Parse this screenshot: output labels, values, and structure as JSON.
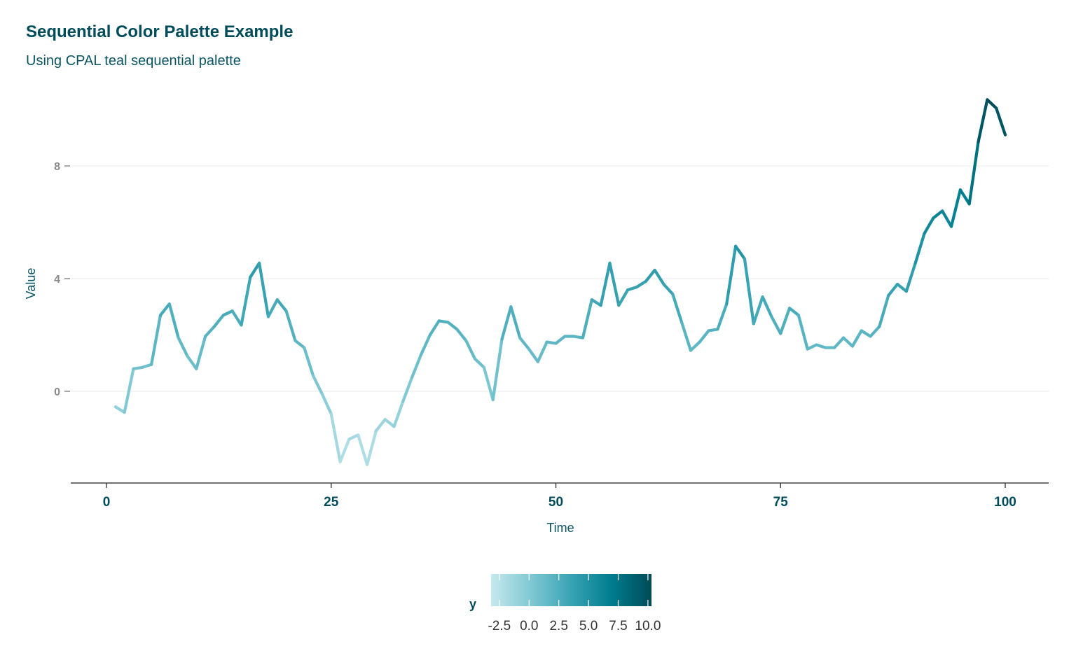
{
  "chart_data": {
    "type": "line",
    "title": "Sequential Color Palette Example",
    "subtitle": "Using CPAL teal sequential palette",
    "xlabel": "Time",
    "ylabel": "Value",
    "xlim": [
      0,
      100
    ],
    "ylim": [
      -3.3,
      11.0
    ],
    "xticks": [
      0,
      25,
      50,
      75,
      100
    ],
    "xtick_labels": [
      "0",
      "25",
      "50",
      "75",
      "100"
    ],
    "yticks": [
      0,
      4,
      8
    ],
    "ytick_labels": [
      "0",
      "4",
      "8"
    ],
    "grid": "horizontal",
    "color_scale": {
      "variable": "y",
      "title": "y",
      "min": -3.2,
      "max": 10.3,
      "breaks": [
        -2.5,
        0.0,
        2.5,
        5.0,
        7.5,
        10.0
      ],
      "break_labels": [
        "-2.5",
        "0.0",
        "2.5",
        "5.0",
        "7.5",
        "10.0"
      ],
      "colors": [
        "#C6E8EE",
        "#7FC8D3",
        "#39A3B3",
        "#007D8F",
        "#004A56"
      ],
      "legend_position": "bottom"
    },
    "x": [
      1,
      2,
      3,
      4,
      5,
      6,
      7,
      8,
      9,
      10,
      11,
      12,
      13,
      14,
      15,
      16,
      17,
      18,
      19,
      20,
      21,
      22,
      23,
      24,
      25,
      26,
      27,
      28,
      29,
      30,
      31,
      32,
      33,
      34,
      35,
      36,
      37,
      38,
      39,
      40,
      41,
      42,
      43,
      44,
      45,
      46,
      47,
      48,
      49,
      50,
      51,
      52,
      53,
      54,
      55,
      56,
      57,
      58,
      59,
      60,
      61,
      62,
      63,
      64,
      65,
      66,
      67,
      68,
      69,
      70,
      71,
      72,
      73,
      74,
      75,
      76,
      77,
      78,
      79,
      80,
      81,
      82,
      83,
      84,
      85,
      86,
      87,
      88,
      89,
      90,
      91,
      92,
      93,
      94,
      95,
      96,
      97,
      98,
      99,
      100
    ],
    "y": [
      -0.55,
      -0.75,
      0.8,
      0.85,
      0.95,
      2.7,
      3.1,
      1.9,
      1.25,
      0.8,
      1.95,
      2.3,
      2.7,
      2.85,
      2.35,
      4.05,
      4.55,
      2.65,
      3.25,
      2.85,
      1.8,
      1.55,
      0.55,
      -0.1,
      -0.8,
      -2.5,
      -1.7,
      -1.55,
      -2.6,
      -1.4,
      -1.0,
      -1.25,
      -0.35,
      0.5,
      1.3,
      2.0,
      2.5,
      2.45,
      2.2,
      1.8,
      1.15,
      0.85,
      -0.3,
      1.85,
      3.0,
      1.9,
      1.5,
      1.05,
      1.75,
      1.7,
      1.95,
      1.95,
      1.9,
      3.25,
      3.05,
      4.55,
      3.05,
      3.6,
      3.7,
      3.9,
      4.3,
      3.8,
      3.45,
      2.45,
      1.45,
      1.75,
      2.15,
      2.2,
      3.1,
      5.15,
      4.7,
      2.4,
      3.35,
      2.65,
      2.05,
      2.95,
      2.7,
      1.5,
      1.65,
      1.55,
      1.55,
      1.9,
      1.6,
      2.15,
      1.95,
      2.3,
      3.4,
      3.8,
      3.55,
      4.55,
      5.6,
      6.15,
      6.4,
      5.85,
      7.15,
      6.65,
      8.85,
      10.35,
      10.05,
      9.1
    ]
  }
}
